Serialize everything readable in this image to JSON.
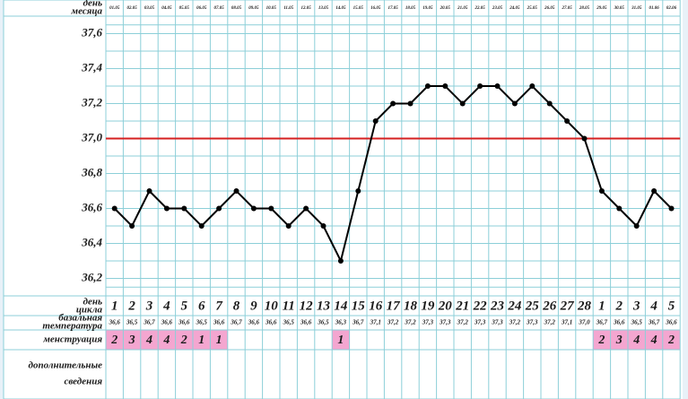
{
  "chart_data": {
    "type": "line",
    "row_labels": {
      "date": [
        "день",
        "месяца"
      ],
      "cycle": [
        "день",
        "цикла"
      ],
      "temp": [
        "базальная",
        "температура"
      ],
      "menses": "менструация",
      "extra": [
        "дополнительные",
        "сведения"
      ]
    },
    "categories": [
      "01.05",
      "02.05",
      "03.05",
      "04.05",
      "05.05",
      "06.05",
      "07.05",
      "08.05",
      "09.05",
      "10.05",
      "11.05",
      "12.05",
      "13.05",
      "14.05",
      "15.05",
      "16.05",
      "17.05",
      "18.05",
      "19.05",
      "20.05",
      "21.05",
      "22.05",
      "23.05",
      "24.05",
      "25.05",
      "26.05",
      "27.05",
      "28.05",
      "29.05",
      "30.05",
      "31.05",
      "01.06",
      "02.06"
    ],
    "cycle_days": [
      1,
      2,
      3,
      4,
      5,
      6,
      7,
      8,
      9,
      10,
      11,
      12,
      13,
      14,
      15,
      16,
      17,
      18,
      19,
      20,
      21,
      22,
      23,
      24,
      25,
      26,
      27,
      28,
      1,
      2,
      3,
      4,
      5
    ],
    "series": [
      {
        "color": "#000000",
        "values": [
          36.6,
          36.5,
          36.7,
          36.6,
          36.6,
          36.5,
          36.6,
          36.7,
          36.6,
          36.6,
          36.5,
          36.6,
          36.5,
          36.3,
          36.7,
          37.1,
          37.2,
          37.2,
          37.3,
          37.3,
          37.2,
          37.3,
          37.3,
          37.2,
          37.3,
          37.2,
          37.1,
          37.0,
          36.7,
          36.6,
          36.5,
          36.7,
          36.6
        ],
        "value_labels": [
          "36,6",
          "36,5",
          "36,7",
          "36,6",
          "36,6",
          "36,5",
          "36,6",
          "36,7",
          "36,6",
          "36,6",
          "36,5",
          "36,6",
          "36,5",
          "36,3",
          "36,7",
          "37,1",
          "37,2",
          "37,2",
          "37,3",
          "37,3",
          "37,2",
          "37,3",
          "37,3",
          "37,2",
          "37,3",
          "37,2",
          "37,1",
          "37,0",
          "36,7",
          "36,6",
          "36,5",
          "36,7",
          "36,6"
        ]
      }
    ],
    "menstruation": [
      2,
      3,
      4,
      4,
      2,
      1,
      1,
      null,
      null,
      null,
      null,
      null,
      null,
      1,
      null,
      null,
      null,
      null,
      null,
      null,
      null,
      null,
      null,
      null,
      null,
      null,
      null,
      null,
      2,
      3,
      4,
      4,
      2
    ],
    "menstruation_color": "#f4a6d0",
    "reference_line": {
      "value": 37.0,
      "color": "#d42020"
    },
    "ylim": [
      36.1,
      37.7
    ],
    "yticks": [
      {
        "value": 36.2,
        "label": "36,2"
      },
      {
        "value": 36.4,
        "label": "36,4"
      },
      {
        "value": 36.6,
        "label": "36,6"
      },
      {
        "value": 36.8,
        "label": "36,8"
      },
      {
        "value": 37.0,
        "label": "37,0"
      },
      {
        "value": 37.2,
        "label": "37,2"
      },
      {
        "value": 37.4,
        "label": "37,4"
      },
      {
        "value": 37.6,
        "label": "37,6"
      }
    ],
    "grid": true
  }
}
